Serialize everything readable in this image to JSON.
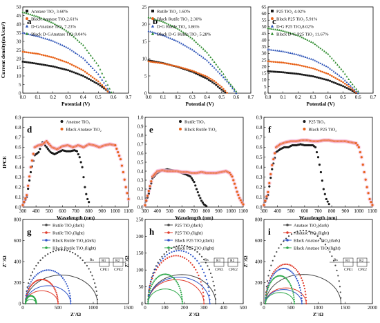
{
  "chart_data": [
    {
      "panel": "a",
      "type": "line",
      "xlabel": "Potential (V)",
      "ylabel": "Current density(mA/cm²)",
      "xlim": [
        0,
        0.7
      ],
      "ylim": [
        0,
        50
      ],
      "xticks": [
        "0.0",
        "0.1",
        "0.2",
        "0.3",
        "0.4",
        "0.5",
        "0.6",
        "0.7"
      ],
      "yticks": [
        "0",
        "5",
        "10",
        "15",
        "20",
        "25",
        "30",
        "35",
        "40",
        "45",
        "50"
      ],
      "legend_position": "top-left",
      "series": [
        {
          "name": "Anatase TiO₂ 3.60%",
          "marker": "square",
          "color": "#1a1a1a",
          "x": [
            0.0,
            0.1,
            0.2,
            0.3,
            0.4,
            0.5,
            0.55,
            0.58
          ],
          "y": [
            18.3,
            17.0,
            15.5,
            13.3,
            10.0,
            5.2,
            2.0,
            0.0
          ]
        },
        {
          "name": "Black Anatase TiO₂2.61%",
          "marker": "circle",
          "color": "#e8631a",
          "x": [
            0.0,
            0.1,
            0.2,
            0.3,
            0.4,
            0.5,
            0.55,
            0.57
          ],
          "y": [
            24.0,
            22.8,
            20.7,
            17.6,
            13.2,
            6.8,
            2.5,
            0.0
          ]
        },
        {
          "name": "D-GAnatase TiO₂ 7.23%",
          "marker": "triangle",
          "color": "#2f55b8",
          "x": [
            0.0,
            0.1,
            0.2,
            0.3,
            0.4,
            0.5,
            0.55,
            0.58
          ],
          "y": [
            35.0,
            33.0,
            30.3,
            26.2,
            20.3,
            11.0,
            4.5,
            0.0
          ]
        },
        {
          "name": "Black D-GAnatase TiO₂9.04%",
          "marker": "triangle",
          "color": "#2e8b2e",
          "x": [
            0.0,
            0.1,
            0.2,
            0.3,
            0.4,
            0.5,
            0.55,
            0.59
          ],
          "y": [
            47.0,
            44.3,
            40.7,
            35.6,
            27.8,
            16.0,
            7.0,
            0.0
          ]
        }
      ]
    },
    {
      "panel": "b",
      "type": "line",
      "xlabel": "Potential (V)",
      "ylabel": "",
      "xlim": [
        0,
        0.7
      ],
      "ylim": [
        0,
        25
      ],
      "xticks": [
        "0.0",
        "0.1",
        "0.2",
        "0.3",
        "0.4",
        "0.5",
        "0.6",
        "0.7"
      ],
      "yticks": [
        "0",
        "5",
        "10",
        "15",
        "20",
        "25"
      ],
      "legend_position": "top-left",
      "series": [
        {
          "name": "Rutile TiO₂ 1.60%",
          "marker": "square",
          "color": "#1a1a1a",
          "x": [
            0.0,
            0.1,
            0.2,
            0.3,
            0.4,
            0.45,
            0.5,
            0.53
          ],
          "y": [
            9.5,
            8.7,
            7.6,
            6.2,
            4.2,
            2.8,
            1.0,
            0.0
          ]
        },
        {
          "name": "Black Rutile TiO₂ 2.30%",
          "marker": "circle",
          "color": "#e8631a",
          "x": [
            0.0,
            0.1,
            0.2,
            0.3,
            0.4,
            0.45,
            0.5,
            0.54
          ],
          "y": [
            9.2,
            8.6,
            7.7,
            6.5,
            4.8,
            3.5,
            1.8,
            0.0
          ]
        },
        {
          "name": "D-G Rutile TiO₂ 3.86%",
          "marker": "triangle",
          "color": "#2f55b8",
          "x": [
            0.0,
            0.1,
            0.2,
            0.3,
            0.4,
            0.5,
            0.55,
            0.6
          ],
          "y": [
            18.0,
            16.8,
            15.0,
            12.6,
            9.5,
            5.2,
            2.8,
            0.0
          ]
        },
        {
          "name": "Black D-G Rutile TiO₂ 5.28%",
          "marker": "triangle",
          "color": "#2e8b2e",
          "x": [
            0.0,
            0.1,
            0.2,
            0.3,
            0.4,
            0.5,
            0.55,
            0.61
          ],
          "y": [
            22.0,
            20.7,
            18.7,
            15.8,
            11.8,
            6.3,
            3.2,
            0.0
          ]
        }
      ]
    },
    {
      "panel": "c",
      "type": "line",
      "xlabel": "Potential (V)",
      "ylabel": "",
      "xlim": [
        0,
        0.7
      ],
      "ylim": [
        0,
        65
      ],
      "xticks": [
        "0.0",
        "0.1",
        "0.2",
        "0.3",
        "0.4",
        "0.5",
        "0.6",
        "0.7"
      ],
      "yticks": [
        "0",
        "5",
        "10",
        "15",
        "20",
        "25",
        "30",
        "35",
        "40",
        "45",
        "50",
        "55",
        "60",
        "65"
      ],
      "legend_position": "top-left",
      "series": [
        {
          "name": "P25 TiO₂ 4.02%",
          "marker": "square",
          "color": "#1a1a1a",
          "x": [
            0.0,
            0.1,
            0.2,
            0.3,
            0.4,
            0.5,
            0.55,
            0.59
          ],
          "y": [
            16.5,
            15.7,
            14.5,
            12.7,
            9.8,
            5.3,
            2.5,
            0.0
          ]
        },
        {
          "name": "Black P25 TiO₂ 5.91%",
          "marker": "circle",
          "color": "#e8631a",
          "x": [
            0.0,
            0.1,
            0.2,
            0.3,
            0.4,
            0.5,
            0.55,
            0.59
          ],
          "y": [
            24.0,
            23.0,
            21.3,
            18.7,
            14.5,
            8.2,
            4.0,
            0.0
          ]
        },
        {
          "name": "D-G P25 TiO₂8.02%",
          "marker": "triangle",
          "color": "#2f55b8",
          "x": [
            0.0,
            0.1,
            0.2,
            0.3,
            0.4,
            0.5,
            0.55,
            0.6
          ],
          "y": [
            33.0,
            31.5,
            29.0,
            25.3,
            19.6,
            11.0,
            5.5,
            0.0
          ]
        },
        {
          "name": "Black D-G P25 TiO₂ 11.67%",
          "marker": "triangle",
          "color": "#2e8b2e",
          "x": [
            0.0,
            0.1,
            0.2,
            0.3,
            0.4,
            0.5,
            0.55,
            0.61
          ],
          "y": [
            49.0,
            47.0,
            43.5,
            38.0,
            29.5,
            16.5,
            8.5,
            0.0
          ]
        }
      ]
    },
    {
      "panel": "d",
      "type": "scatter",
      "xlabel": "Wavelength (nm)",
      "ylabel": "IPCE",
      "xlim": [
        300,
        1100
      ],
      "ylim": [
        0,
        0.9
      ],
      "xticks": [
        "300",
        "400",
        "500",
        "600",
        "700",
        "800",
        "900",
        "1000",
        "1100"
      ],
      "yticks": [
        "0.0",
        "0.1",
        "0.2",
        "0.3",
        "0.4",
        "0.5",
        "0.6",
        "0.7",
        "0.8",
        "0.9"
      ],
      "legend_position": "top-center",
      "series": [
        {
          "name": "Anatase TiO₂",
          "marker": "circle",
          "color": "#1a1a1a",
          "x": [
            300,
            330,
            360,
            390,
            420,
            450,
            480,
            510,
            540,
            570,
            600,
            630,
            660,
            690,
            710,
            730,
            750,
            760,
            770,
            780,
            790,
            800
          ],
          "y": [
            0.02,
            0.1,
            0.35,
            0.52,
            0.55,
            0.65,
            0.6,
            0.55,
            0.53,
            0.55,
            0.57,
            0.56,
            0.56,
            0.57,
            0.56,
            0.5,
            0.4,
            0.3,
            0.2,
            0.13,
            0.08,
            0.05
          ]
        },
        {
          "name": "Black Anatase TiO₂",
          "marker": "circle",
          "color": "#e8631a",
          "x": [
            300,
            330,
            360,
            390,
            420,
            450,
            480,
            520,
            560,
            600,
            640,
            680,
            720,
            760,
            800,
            840,
            880,
            920,
            960,
            1000,
            1020,
            1040,
            1060,
            1080,
            1100
          ],
          "y": [
            0.02,
            0.12,
            0.4,
            0.6,
            0.62,
            0.63,
            0.66,
            0.6,
            0.58,
            0.61,
            0.62,
            0.6,
            0.62,
            0.6,
            0.63,
            0.62,
            0.6,
            0.62,
            0.63,
            0.62,
            0.55,
            0.48,
            0.35,
            0.2,
            0.08
          ]
        }
      ]
    },
    {
      "panel": "e",
      "type": "scatter",
      "xlabel": "Wavelength (nm)",
      "ylabel": "",
      "xlim": [
        300,
        1100
      ],
      "ylim": [
        0,
        1.0
      ],
      "xticks": [
        "300",
        "400",
        "500",
        "600",
        "700",
        "800",
        "900",
        "1000",
        "1100"
      ],
      "yticks": [
        "0.0",
        "0.1",
        "0.2",
        "0.3",
        "0.4",
        "0.5",
        "0.6",
        "0.7",
        "0.8",
        "0.9",
        "1.0"
      ],
      "legend_position": "top-center",
      "series": [
        {
          "name": "Rutile TiO₂",
          "marker": "circle",
          "color": "#1a1a1a",
          "x": [
            300,
            330,
            360,
            400,
            440,
            480,
            520,
            560,
            600,
            640,
            670,
            700,
            720,
            740,
            760,
            780,
            800
          ],
          "y": [
            0.02,
            0.15,
            0.32,
            0.38,
            0.41,
            0.42,
            0.41,
            0.4,
            0.38,
            0.36,
            0.34,
            0.28,
            0.2,
            0.13,
            0.07,
            0.03,
            0.01
          ]
        },
        {
          "name": "Black Rutile TiO₂",
          "marker": "circle",
          "color": "#e8631a",
          "x": [
            300,
            330,
            360,
            400,
            440,
            480,
            520,
            560,
            600,
            640,
            680,
            720,
            760,
            800,
            840,
            880,
            920,
            960,
            990,
            1010,
            1030,
            1050,
            1070,
            1090,
            1100
          ],
          "y": [
            0.02,
            0.18,
            0.34,
            0.4,
            0.41,
            0.4,
            0.4,
            0.4,
            0.39,
            0.39,
            0.38,
            0.38,
            0.39,
            0.38,
            0.38,
            0.38,
            0.39,
            0.4,
            0.38,
            0.34,
            0.26,
            0.17,
            0.1,
            0.05,
            0.03
          ]
        }
      ]
    },
    {
      "panel": "f",
      "type": "scatter",
      "xlabel": "Wavelength (nm)",
      "ylabel": "",
      "xlim": [
        300,
        1100
      ],
      "ylim": [
        0,
        0.9
      ],
      "xticks": [
        "300",
        "400",
        "500",
        "600",
        "700",
        "800",
        "900",
        "1000",
        "1100"
      ],
      "yticks": [
        "0.0",
        "0.1",
        "0.2",
        "0.3",
        "0.4",
        "0.5",
        "0.6",
        "0.7",
        "0.8",
        "0.9"
      ],
      "legend_position": "top-center",
      "series": [
        {
          "name": "P25 TiO₂",
          "marker": "circle",
          "color": "#1a1a1a",
          "x": [
            300,
            330,
            360,
            390,
            420,
            450,
            480,
            510,
            540,
            570,
            600,
            630,
            660,
            680,
            700,
            720,
            740,
            760,
            780
          ],
          "y": [
            0.02,
            0.12,
            0.38,
            0.55,
            0.58,
            0.6,
            0.6,
            0.62,
            0.62,
            0.63,
            0.62,
            0.62,
            0.62,
            0.6,
            0.5,
            0.35,
            0.18,
            0.08,
            0.03
          ]
        },
        {
          "name": "Black P25 TiO₂",
          "marker": "circle",
          "color": "#e8631a",
          "x": [
            300,
            330,
            360,
            390,
            420,
            460,
            500,
            540,
            580,
            620,
            660,
            700,
            740,
            780,
            820,
            860,
            900,
            940,
            980,
            1000,
            1020,
            1040,
            1060,
            1080,
            1100
          ],
          "y": [
            0.02,
            0.15,
            0.42,
            0.6,
            0.63,
            0.65,
            0.66,
            0.66,
            0.67,
            0.67,
            0.66,
            0.66,
            0.67,
            0.67,
            0.66,
            0.66,
            0.66,
            0.65,
            0.64,
            0.6,
            0.5,
            0.35,
            0.2,
            0.08,
            0.02
          ]
        }
      ]
    },
    {
      "panel": "g",
      "type": "scatter",
      "xlabel": "Z'/Ω",
      "ylabel": "Z''/Ω",
      "xlim": [
        0,
        1500
      ],
      "ylim": [
        0,
        800
      ],
      "xticks": [
        "0",
        "500",
        "1000",
        "1500"
      ],
      "yticks": [
        "0",
        "200",
        "400",
        "600",
        "800"
      ],
      "legend_position": "top-right",
      "circuit": {
        "r": [
          "Rs",
          "R1",
          "R2"
        ],
        "cpe": [
          "CPE1",
          "CPE2"
        ]
      },
      "series": [
        {
          "name": "Rutile TiO₂(dark)",
          "marker": "circle",
          "color": "#444444",
          "arc": [
            40,
            1060
          ]
        },
        {
          "name": "Rutile TiO₂(light)",
          "marker": "circle",
          "color": "#e03a2a",
          "arc": [
            40,
            500
          ]
        },
        {
          "name": "Black Rutile TiO₂(dark)",
          "marker": "circle",
          "color": "#2f55c8",
          "arc": [
            40,
            680
          ]
        },
        {
          "name": "Black Rutile TiO₂(light)",
          "marker": "circle",
          "color": "#2ea84a",
          "arc": [
            40,
            190
          ]
        }
      ]
    },
    {
      "panel": "h",
      "type": "scatter",
      "xlabel": "Z'/Ω",
      "ylabel": "Z''/Ω",
      "xlim": [
        0,
        500
      ],
      "ylim": [
        0,
        250
      ],
      "xticks": [
        "0",
        "100",
        "200",
        "300",
        "400",
        "500"
      ],
      "yticks": [
        "0",
        "50",
        "100",
        "150",
        "200",
        "250"
      ],
      "legend_position": "top-right",
      "circuit": {
        "r": [
          "Rs",
          "R1",
          "R2"
        ],
        "cpe": [
          "CPE1",
          "CPE2"
        ]
      },
      "series": [
        {
          "name": "P25 TiO₂(dark)",
          "marker": "circle",
          "color": "#444444",
          "arc": [
            15,
            360
          ]
        },
        {
          "name": "P25 TiO₂(light)",
          "marker": "circle",
          "color": "#e03a2a",
          "arc": [
            15,
            300
          ]
        },
        {
          "name": "Black P25 TiO₂(dark)",
          "marker": "circle",
          "color": "#2f55c8",
          "arc": [
            15,
            330
          ]
        },
        {
          "name": "Black P25 TiO₂(light)",
          "marker": "circle",
          "color": "#2ea84a",
          "arc": [
            15,
            190
          ]
        }
      ]
    },
    {
      "panel": "i",
      "type": "scatter",
      "xlabel": "Z'/Ω",
      "ylabel": "Z''/Ω",
      "xlim": [
        0,
        2000
      ],
      "ylim": [
        0,
        800
      ],
      "xticks": [
        "0",
        "500",
        "1000",
        "1500",
        "2000"
      ],
      "yticks": [
        "0",
        "200",
        "400",
        "600",
        "800"
      ],
      "legend_position": "top-right",
      "circuit": {
        "r": [
          "Rs",
          "R1",
          "R2"
        ],
        "cpe": [
          "CPE1",
          "CPE2"
        ]
      },
      "series": [
        {
          "name": "Anatase TiO₂(dark)",
          "marker": "circle",
          "color": "#444444",
          "arc": [
            30,
            1420
          ]
        },
        {
          "name": "Anatase TiO₂(light)",
          "marker": "circle",
          "color": "#e03a2a",
          "arc": [
            30,
            780
          ]
        },
        {
          "name": "Black Anatase TiO₂(dark)",
          "marker": "circle",
          "color": "#2f55c8",
          "arc": [
            30,
            700
          ]
        },
        {
          "name": "Black Anatase TiO₂(light)",
          "marker": "circle",
          "color": "#2ea84a",
          "arc": [
            30,
            560
          ]
        }
      ]
    }
  ]
}
